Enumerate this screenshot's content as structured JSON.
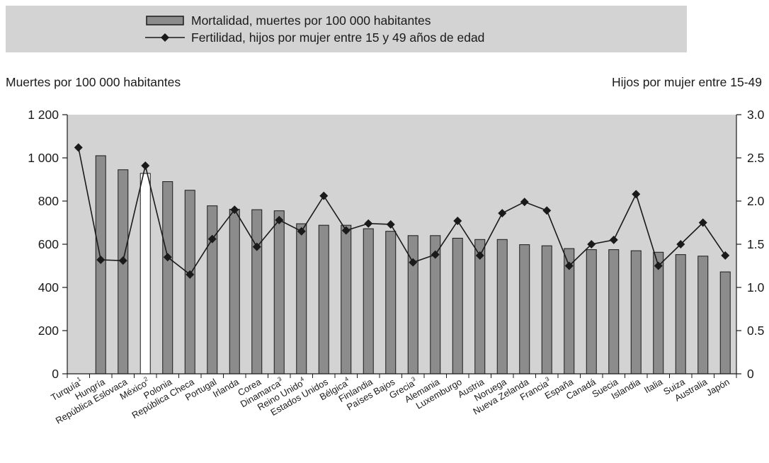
{
  "legend": {
    "bar_label": "Mortalidad, muertes por 100 000 habitantes",
    "line_label": "Fertilidad, hijos por mujer entre 15 y 49 años de edad"
  },
  "chart_data": {
    "type": "bar",
    "title": "",
    "ylabel": "Muertes por 100 000 habitantes",
    "y2label": "Hijos por mujer entre 15-49",
    "ylim": [
      0,
      1200
    ],
    "y2lim": [
      0,
      3
    ],
    "yticks": [
      "0",
      "200",
      "400",
      "600",
      "800",
      "1 000",
      "1 200"
    ],
    "y2ticks": [
      "0",
      "0.5",
      "1.0",
      "1.5",
      "2.0",
      "2.5",
      "3.0"
    ],
    "grid": false,
    "legend_position": "top",
    "categories": [
      {
        "name": "Turquía",
        "sup": "1"
      },
      {
        "name": "Hungría",
        "sup": ""
      },
      {
        "name": "República Eslovaca",
        "sup": ""
      },
      {
        "name": "México",
        "sup": "2"
      },
      {
        "name": "Polonia",
        "sup": ""
      },
      {
        "name": "República Checa",
        "sup": ""
      },
      {
        "name": "Portugal",
        "sup": ""
      },
      {
        "name": "Irlanda",
        "sup": ""
      },
      {
        "name": "Corea",
        "sup": ""
      },
      {
        "name": "Dinamarca",
        "sup": "3"
      },
      {
        "name": "Reino Unido",
        "sup": "4"
      },
      {
        "name": "Estados Unidos",
        "sup": ""
      },
      {
        "name": "Bélgica",
        "sup": "4"
      },
      {
        "name": "Finlandia",
        "sup": ""
      },
      {
        "name": "Países Bajos",
        "sup": ""
      },
      {
        "name": "Grecia",
        "sup": "3"
      },
      {
        "name": "Alemania",
        "sup": ""
      },
      {
        "name": "Luxemburgo",
        "sup": ""
      },
      {
        "name": "Austria",
        "sup": ""
      },
      {
        "name": "Noruega",
        "sup": ""
      },
      {
        "name": "Nueva Zelanda",
        "sup": ""
      },
      {
        "name": "Francia",
        "sup": "3"
      },
      {
        "name": "España",
        "sup": ""
      },
      {
        "name": "Canadá",
        "sup": ""
      },
      {
        "name": "Suecia",
        "sup": ""
      },
      {
        "name": "Islandia",
        "sup": ""
      },
      {
        "name": "Italia",
        "sup": ""
      },
      {
        "name": "Suiza",
        "sup": ""
      },
      {
        "name": "Australia",
        "sup": ""
      },
      {
        "name": "Japón",
        "sup": ""
      }
    ],
    "series": [
      {
        "name": "Mortalidad, muertes por 100 000 habitantes",
        "type": "bar",
        "axis": "left",
        "values": [
          null,
          1010,
          945,
          928,
          890,
          850,
          778,
          762,
          760,
          755,
          695,
          688,
          688,
          672,
          660,
          640,
          640,
          628,
          622,
          622,
          598,
          593,
          580,
          575,
          575,
          570,
          563,
          552,
          545,
          472
        ],
        "highlight_index": 3
      },
      {
        "name": "Fertilidad, hijos por mujer entre 15 y 49 años de edad",
        "type": "line",
        "axis": "right",
        "values": [
          2.62,
          1.32,
          1.31,
          2.41,
          1.35,
          1.15,
          1.56,
          1.9,
          1.47,
          1.78,
          1.65,
          2.06,
          1.66,
          1.74,
          1.73,
          1.29,
          1.38,
          1.77,
          1.37,
          1.86,
          1.99,
          1.89,
          1.25,
          1.5,
          1.55,
          2.08,
          1.25,
          1.5,
          1.75,
          1.37
        ]
      }
    ],
    "colors": {
      "plot_bg": "#d3d3d3",
      "bar_fill": "#8c8c8c",
      "bar_highlight_fill": "#ffffff",
      "bar_stroke": "#1a1a1a",
      "line": "#1a1a1a"
    }
  }
}
